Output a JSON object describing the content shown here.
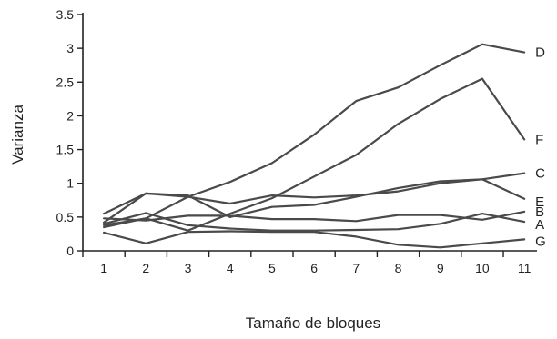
{
  "chart_data": {
    "type": "line",
    "xlabel": "Tamaño de bloques",
    "ylabel": "Varianza",
    "x": [
      1,
      2,
      3,
      4,
      5,
      6,
      7,
      8,
      9,
      10,
      11
    ],
    "xlim": [
      0.5,
      11.3
    ],
    "ylim": [
      0,
      3.5
    ],
    "yticks": [
      "0",
      "0.5",
      "1",
      "1.5",
      "2",
      "2.5",
      "3",
      "3.5"
    ],
    "xticks": [
      "1",
      "2",
      "3",
      "4",
      "5",
      "6",
      "7",
      "8",
      "9",
      "10",
      "11"
    ],
    "grid": false,
    "line_color": "#4a4a4a",
    "series": [
      {
        "name": "D",
        "values": [
          0.38,
          0.48,
          0.8,
          1.02,
          1.3,
          1.72,
          2.22,
          2.42,
          2.75,
          3.06,
          2.94
        ]
      },
      {
        "name": "F",
        "values": [
          0.35,
          0.48,
          0.3,
          0.55,
          0.78,
          1.1,
          1.42,
          1.88,
          2.25,
          2.55,
          1.65
        ]
      },
      {
        "name": "C",
        "values": [
          0.55,
          0.85,
          0.82,
          0.5,
          0.65,
          0.68,
          0.8,
          0.93,
          1.03,
          1.06,
          1.15
        ]
      },
      {
        "name": "E",
        "values": [
          0.42,
          0.85,
          0.8,
          0.7,
          0.82,
          0.79,
          0.82,
          0.88,
          1.0,
          1.06,
          0.77
        ]
      },
      {
        "name": "B",
        "values": [
          0.48,
          0.45,
          0.52,
          0.52,
          0.47,
          0.47,
          0.44,
          0.53,
          0.53,
          0.46,
          0.58
        ]
      },
      {
        "name": "A",
        "values": [
          0.4,
          0.56,
          0.38,
          0.33,
          0.3,
          0.3,
          0.31,
          0.32,
          0.4,
          0.55,
          0.43
        ]
      },
      {
        "name": "G",
        "values": [
          0.27,
          0.11,
          0.28,
          0.29,
          0.28,
          0.28,
          0.21,
          0.09,
          0.05,
          0.11,
          0.17
        ]
      }
    ]
  }
}
